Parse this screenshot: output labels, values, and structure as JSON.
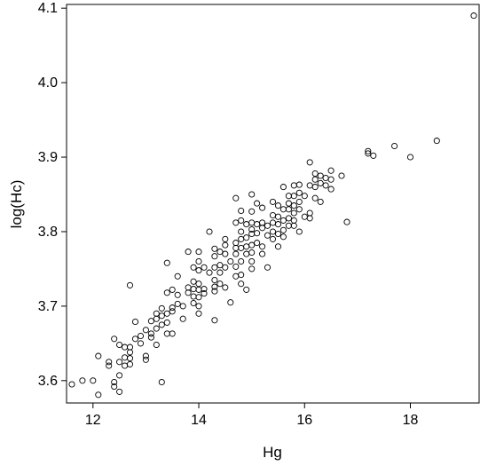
{
  "chart_data": {
    "type": "scatter",
    "title": "",
    "xlabel": "Hg",
    "ylabel": "log(Hc)",
    "xlim": [
      11.5,
      19.3
    ],
    "ylim": [
      3.57,
      4.105
    ],
    "xticks": [
      12,
      14,
      16,
      18
    ],
    "yticks": [
      3.6,
      3.7,
      3.8,
      3.9,
      4.0,
      4.1
    ],
    "xtick_labels": [
      "12",
      "14",
      "16",
      "18"
    ],
    "ytick_labels": [
      "3.6",
      "3.7",
      "3.8",
      "3.9",
      "4.0",
      "4.1"
    ],
    "grid": false,
    "legend": "none",
    "marker": "open-circle",
    "colors": {
      "marker": "#000000",
      "frame": "#000000"
    },
    "points": [
      [
        11.6,
        3.595
      ],
      [
        11.8,
        3.6
      ],
      [
        12.0,
        3.6
      ],
      [
        12.1,
        3.633
      ],
      [
        12.1,
        3.581
      ],
      [
        12.3,
        3.625
      ],
      [
        12.3,
        3.62
      ],
      [
        12.4,
        3.656
      ],
      [
        12.4,
        3.598
      ],
      [
        12.4,
        3.592
      ],
      [
        12.5,
        3.648
      ],
      [
        12.5,
        3.625
      ],
      [
        12.5,
        3.607
      ],
      [
        12.5,
        3.585
      ],
      [
        12.6,
        3.645
      ],
      [
        12.6,
        3.631
      ],
      [
        12.6,
        3.62
      ],
      [
        12.7,
        3.728
      ],
      [
        12.7,
        3.645
      ],
      [
        12.7,
        3.638
      ],
      [
        12.7,
        3.63
      ],
      [
        12.7,
        3.622
      ],
      [
        12.8,
        3.679
      ],
      [
        12.8,
        3.656
      ],
      [
        12.9,
        3.66
      ],
      [
        12.9,
        3.65
      ],
      [
        13.0,
        3.668
      ],
      [
        13.0,
        3.633
      ],
      [
        13.0,
        3.628
      ],
      [
        13.1,
        3.68
      ],
      [
        13.1,
        3.663
      ],
      [
        13.1,
        3.658
      ],
      [
        13.2,
        3.69
      ],
      [
        13.2,
        3.683
      ],
      [
        13.2,
        3.67
      ],
      [
        13.2,
        3.648
      ],
      [
        13.3,
        3.697
      ],
      [
        13.3,
        3.687
      ],
      [
        13.3,
        3.675
      ],
      [
        13.3,
        3.598
      ],
      [
        13.4,
        3.758
      ],
      [
        13.4,
        3.718
      ],
      [
        13.4,
        3.69
      ],
      [
        13.4,
        3.678
      ],
      [
        13.4,
        3.663
      ],
      [
        13.5,
        3.722
      ],
      [
        13.5,
        3.698
      ],
      [
        13.5,
        3.693
      ],
      [
        13.5,
        3.663
      ],
      [
        13.6,
        3.74
      ],
      [
        13.6,
        3.715
      ],
      [
        13.6,
        3.703
      ],
      [
        13.7,
        3.7
      ],
      [
        13.7,
        3.683
      ],
      [
        13.8,
        3.773
      ],
      [
        13.8,
        3.725
      ],
      [
        13.8,
        3.718
      ],
      [
        13.9,
        3.752
      ],
      [
        13.9,
        3.733
      ],
      [
        13.9,
        3.723
      ],
      [
        13.9,
        3.713
      ],
      [
        13.9,
        3.704
      ],
      [
        14.0,
        3.773
      ],
      [
        14.0,
        3.76
      ],
      [
        14.0,
        3.748
      ],
      [
        14.0,
        3.73
      ],
      [
        14.0,
        3.722
      ],
      [
        14.0,
        3.712
      ],
      [
        14.0,
        3.7
      ],
      [
        14.0,
        3.69
      ],
      [
        14.1,
        3.752
      ],
      [
        14.1,
        3.723
      ],
      [
        14.1,
        3.717
      ],
      [
        14.2,
        3.8
      ],
      [
        14.2,
        3.745
      ],
      [
        14.3,
        3.777
      ],
      [
        14.3,
        3.767
      ],
      [
        14.3,
        3.752
      ],
      [
        14.3,
        3.735
      ],
      [
        14.3,
        3.726
      ],
      [
        14.3,
        3.72
      ],
      [
        14.3,
        3.681
      ],
      [
        14.4,
        3.773
      ],
      [
        14.4,
        3.755
      ],
      [
        14.4,
        3.745
      ],
      [
        14.4,
        3.73
      ],
      [
        14.5,
        3.79
      ],
      [
        14.5,
        3.782
      ],
      [
        14.5,
        3.77
      ],
      [
        14.5,
        3.752
      ],
      [
        14.5,
        3.725
      ],
      [
        14.6,
        3.76
      ],
      [
        14.6,
        3.705
      ],
      [
        14.7,
        3.845
      ],
      [
        14.7,
        3.812
      ],
      [
        14.7,
        3.785
      ],
      [
        14.7,
        3.778
      ],
      [
        14.7,
        3.77
      ],
      [
        14.7,
        3.753
      ],
      [
        14.7,
        3.74
      ],
      [
        14.8,
        3.828
      ],
      [
        14.8,
        3.815
      ],
      [
        14.8,
        3.8
      ],
      [
        14.8,
        3.79
      ],
      [
        14.8,
        3.778
      ],
      [
        14.8,
        3.76
      ],
      [
        14.8,
        3.742
      ],
      [
        14.8,
        3.73
      ],
      [
        14.9,
        3.81
      ],
      [
        14.9,
        3.792
      ],
      [
        14.9,
        3.78
      ],
      [
        14.9,
        3.77
      ],
      [
        14.9,
        3.722
      ],
      [
        15.0,
        3.85
      ],
      [
        15.0,
        3.827
      ],
      [
        15.0,
        3.812
      ],
      [
        15.0,
        3.803
      ],
      [
        15.0,
        3.797
      ],
      [
        15.0,
        3.782
      ],
      [
        15.0,
        3.772
      ],
      [
        15.0,
        3.76
      ],
      [
        15.0,
        3.75
      ],
      [
        15.1,
        3.838
      ],
      [
        15.1,
        3.81
      ],
      [
        15.1,
        3.798
      ],
      [
        15.1,
        3.785
      ],
      [
        15.2,
        3.832
      ],
      [
        15.2,
        3.812
      ],
      [
        15.2,
        3.805
      ],
      [
        15.2,
        3.78
      ],
      [
        15.2,
        3.77
      ],
      [
        15.3,
        3.808
      ],
      [
        15.3,
        3.795
      ],
      [
        15.3,
        3.752
      ],
      [
        15.4,
        3.84
      ],
      [
        15.4,
        3.822
      ],
      [
        15.4,
        3.812
      ],
      [
        15.4,
        3.8
      ],
      [
        15.4,
        3.79
      ],
      [
        15.5,
        3.835
      ],
      [
        15.5,
        3.82
      ],
      [
        15.5,
        3.81
      ],
      [
        15.5,
        3.797
      ],
      [
        15.5,
        3.78
      ],
      [
        15.6,
        3.86
      ],
      [
        15.6,
        3.83
      ],
      [
        15.6,
        3.815
      ],
      [
        15.6,
        3.802
      ],
      [
        15.6,
        3.793
      ],
      [
        15.7,
        3.848
      ],
      [
        15.7,
        3.838
      ],
      [
        15.7,
        3.83
      ],
      [
        15.7,
        3.818
      ],
      [
        15.7,
        3.808
      ],
      [
        15.8,
        3.862
      ],
      [
        15.8,
        3.848
      ],
      [
        15.8,
        3.835
      ],
      [
        15.8,
        3.825
      ],
      [
        15.8,
        3.815
      ],
      [
        15.8,
        3.808
      ],
      [
        15.9,
        3.863
      ],
      [
        15.9,
        3.852
      ],
      [
        15.9,
        3.84
      ],
      [
        15.9,
        3.83
      ],
      [
        15.9,
        3.8
      ],
      [
        16.0,
        3.848
      ],
      [
        16.0,
        3.82
      ],
      [
        16.1,
        3.893
      ],
      [
        16.1,
        3.862
      ],
      [
        16.1,
        3.825
      ],
      [
        16.1,
        3.818
      ],
      [
        16.2,
        3.878
      ],
      [
        16.2,
        3.87
      ],
      [
        16.2,
        3.86
      ],
      [
        16.2,
        3.845
      ],
      [
        16.3,
        3.875
      ],
      [
        16.3,
        3.865
      ],
      [
        16.3,
        3.84
      ],
      [
        16.4,
        3.872
      ],
      [
        16.4,
        3.862
      ],
      [
        16.5,
        3.882
      ],
      [
        16.5,
        3.87
      ],
      [
        16.5,
        3.857
      ],
      [
        16.7,
        3.875
      ],
      [
        16.8,
        3.813
      ],
      [
        17.2,
        3.908
      ],
      [
        17.2,
        3.905
      ],
      [
        17.3,
        3.902
      ],
      [
        17.7,
        3.915
      ],
      [
        18.0,
        3.9
      ],
      [
        18.5,
        3.922
      ],
      [
        19.2,
        4.09
      ]
    ]
  }
}
